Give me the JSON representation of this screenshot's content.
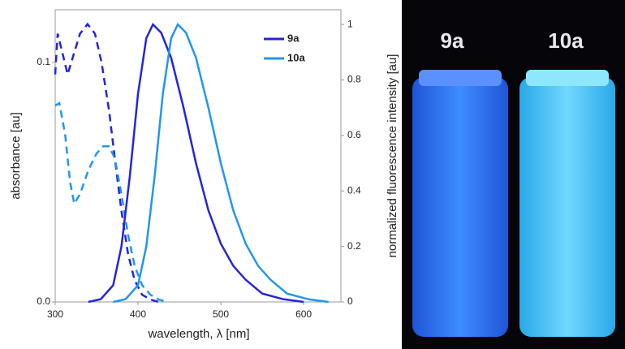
{
  "chart_data": {
    "type": "line",
    "x_label": "wavelength, λ [nm]",
    "y_label": "absorbance [au]",
    "y2_label": "normalized fluorescence intensity [au]",
    "xlim": [
      300,
      645
    ],
    "xticks": [
      300,
      400,
      500,
      600
    ],
    "ylim": [
      0,
      0.122
    ],
    "yticks": [
      {
        "value": 0,
        "label": "0.0"
      },
      0.1
    ],
    "y2lim": [
      0,
      1.053
    ],
    "y2ticks": [
      0,
      0.2,
      0.4,
      0.6,
      0.8,
      1
    ],
    "series": [
      {
        "color": "#2424e0",
        "dash": true,
        "axis": "y",
        "x": [
          300,
          303,
          308,
          315,
          322,
          330,
          339,
          348,
          356,
          365,
          372,
          380,
          388,
          396,
          405,
          415,
          425
        ],
        "values": [
          0.095,
          0.112,
          0.105,
          0.095,
          0.103,
          0.112,
          0.116,
          0.112,
          0.1,
          0.08,
          0.06,
          0.038,
          0.02,
          0.009,
          0.003,
          0.001,
          0
        ]
      },
      {
        "color": "#2196f0",
        "dash": true,
        "axis": "y",
        "x": [
          300,
          305,
          312,
          318,
          323,
          330,
          340,
          350,
          358,
          365,
          372,
          380,
          388,
          396,
          405,
          415,
          425,
          435
        ],
        "values": [
          0.082,
          0.083,
          0.07,
          0.05,
          0.041,
          0.045,
          0.055,
          0.062,
          0.065,
          0.065,
          0.06,
          0.045,
          0.028,
          0.015,
          0.007,
          0.003,
          0.001,
          0
        ]
      },
      {
        "name": "9a",
        "color": "#2424e0",
        "dash": false,
        "axis": "y2",
        "x": [
          340,
          355,
          370,
          380,
          390,
          400,
          410,
          418,
          428,
          440,
          455,
          470,
          485,
          500,
          515,
          530,
          550,
          575,
          600
        ],
        "values": [
          0,
          0.01,
          0.06,
          0.2,
          0.45,
          0.75,
          0.95,
          1.0,
          0.97,
          0.88,
          0.7,
          0.5,
          0.33,
          0.21,
          0.13,
          0.08,
          0.03,
          0.01,
          0
        ]
      },
      {
        "name": "10a",
        "color": "#2196f0",
        "dash": false,
        "axis": "y2",
        "x": [
          370,
          385,
          400,
          410,
          420,
          430,
          440,
          448,
          458,
          470,
          485,
          500,
          515,
          530,
          545,
          560,
          580,
          605,
          630
        ],
        "values": [
          0,
          0.01,
          0.06,
          0.2,
          0.45,
          0.75,
          0.95,
          1.0,
          0.97,
          0.88,
          0.7,
          0.5,
          0.33,
          0.21,
          0.13,
          0.08,
          0.03,
          0.01,
          0
        ]
      }
    ]
  },
  "photo": {
    "labels": [
      "9a",
      "10a"
    ]
  }
}
